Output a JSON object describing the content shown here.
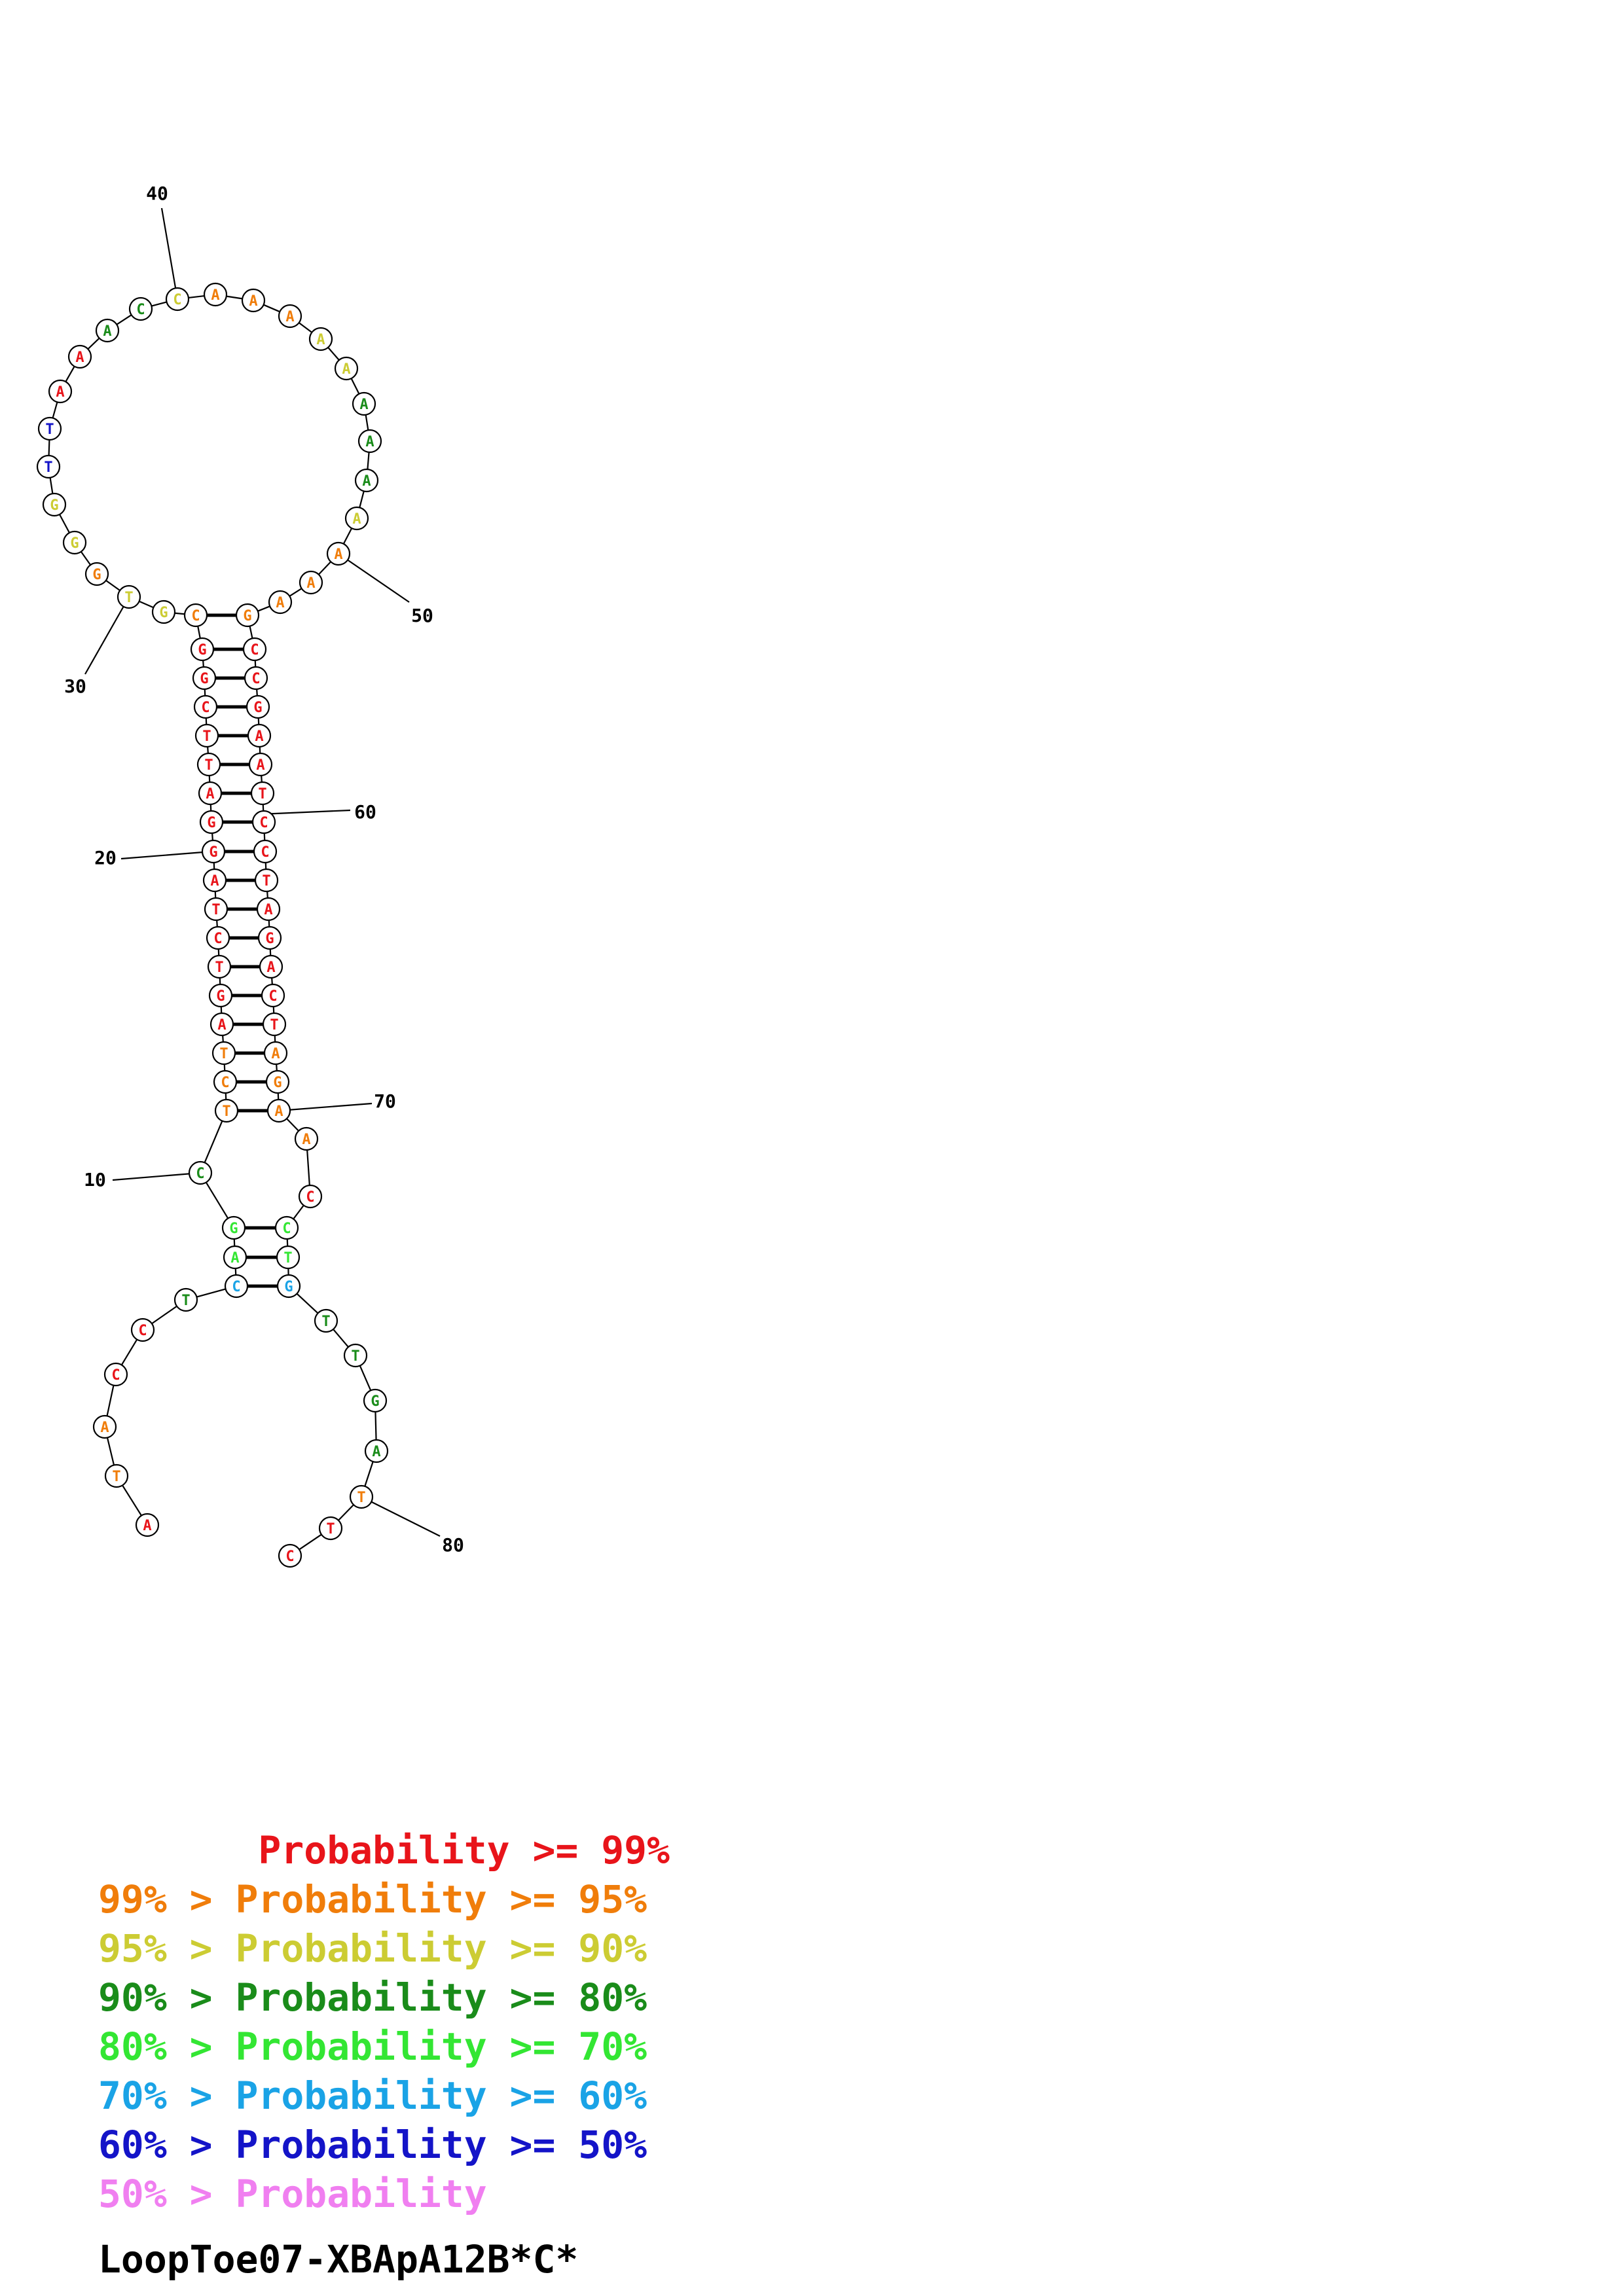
{
  "nucleotides": [
    {
      "n": 1,
      "base": "A",
      "color": "red"
    },
    {
      "n": 2,
      "base": "T",
      "color": "orange"
    },
    {
      "n": 3,
      "base": "A",
      "color": "orange"
    },
    {
      "n": 4,
      "base": "C",
      "color": "red"
    },
    {
      "n": 5,
      "base": "C",
      "color": "red"
    },
    {
      "n": 6,
      "base": "T",
      "color": "green"
    },
    {
      "n": 7,
      "base": "C",
      "color": "cyan"
    },
    {
      "n": 8,
      "base": "A",
      "color": "lime"
    },
    {
      "n": 9,
      "base": "G",
      "color": "lime"
    },
    {
      "n": 10,
      "base": "C",
      "color": "green"
    },
    {
      "n": 11,
      "base": "T",
      "color": "orange"
    },
    {
      "n": 12,
      "base": "C",
      "color": "orange"
    },
    {
      "n": 13,
      "base": "T",
      "color": "orange"
    },
    {
      "n": 14,
      "base": "A",
      "color": "red"
    },
    {
      "n": 15,
      "base": "G",
      "color": "red"
    },
    {
      "n": 16,
      "base": "T",
      "color": "red"
    },
    {
      "n": 17,
      "base": "C",
      "color": "red"
    },
    {
      "n": 18,
      "base": "T",
      "color": "red"
    },
    {
      "n": 19,
      "base": "A",
      "color": "red"
    },
    {
      "n": 20,
      "base": "G",
      "color": "red"
    },
    {
      "n": 21,
      "base": "G",
      "color": "red"
    },
    {
      "n": 22,
      "base": "A",
      "color": "red"
    },
    {
      "n": 23,
      "base": "T",
      "color": "red"
    },
    {
      "n": 24,
      "base": "T",
      "color": "red"
    },
    {
      "n": 25,
      "base": "C",
      "color": "red"
    },
    {
      "n": 26,
      "base": "G",
      "color": "red"
    },
    {
      "n": 27,
      "base": "G",
      "color": "red"
    },
    {
      "n": 28,
      "base": "C",
      "color": "orange"
    },
    {
      "n": 29,
      "base": "G",
      "color": "yellow"
    },
    {
      "n": 30,
      "base": "T",
      "color": "yellow"
    },
    {
      "n": 31,
      "base": "G",
      "color": "orange"
    },
    {
      "n": 32,
      "base": "G",
      "color": "yellow"
    },
    {
      "n": 33,
      "base": "G",
      "color": "yellow"
    },
    {
      "n": 34,
      "base": "T",
      "color": "blue"
    },
    {
      "n": 35,
      "base": "T",
      "color": "blue"
    },
    {
      "n": 36,
      "base": "A",
      "color": "red"
    },
    {
      "n": 37,
      "base": "A",
      "color": "red"
    },
    {
      "n": 38,
      "base": "A",
      "color": "green"
    },
    {
      "n": 39,
      "base": "C",
      "color": "green"
    },
    {
      "n": 40,
      "base": "C",
      "color": "yellow"
    },
    {
      "n": 41,
      "base": "A",
      "color": "orange"
    },
    {
      "n": 42,
      "base": "A",
      "color": "orange"
    },
    {
      "n": 43,
      "base": "A",
      "color": "orange"
    },
    {
      "n": 44,
      "base": "A",
      "color": "yellow"
    },
    {
      "n": 45,
      "base": "A",
      "color": "yellow"
    },
    {
      "n": 46,
      "base": "A",
      "color": "green"
    },
    {
      "n": 47,
      "base": "A",
      "color": "green"
    },
    {
      "n": 48,
      "base": "A",
      "color": "green"
    },
    {
      "n": 49,
      "base": "A",
      "color": "yellow"
    },
    {
      "n": 50,
      "base": "A",
      "color": "orange"
    },
    {
      "n": 51,
      "base": "A",
      "color": "orange"
    },
    {
      "n": 52,
      "base": "A",
      "color": "orange"
    },
    {
      "n": 53,
      "base": "G",
      "color": "orange"
    },
    {
      "n": 54,
      "base": "C",
      "color": "red"
    },
    {
      "n": 55,
      "base": "C",
      "color": "red"
    },
    {
      "n": 56,
      "base": "G",
      "color": "red"
    },
    {
      "n": 57,
      "base": "A",
      "color": "red"
    },
    {
      "n": 58,
      "base": "A",
      "color": "red"
    },
    {
      "n": 59,
      "base": "T",
      "color": "red"
    },
    {
      "n": 60,
      "base": "C",
      "color": "red"
    },
    {
      "n": 61,
      "base": "C",
      "color": "red"
    },
    {
      "n": 62,
      "base": "T",
      "color": "red"
    },
    {
      "n": 63,
      "base": "A",
      "color": "red"
    },
    {
      "n": 64,
      "base": "G",
      "color": "red"
    },
    {
      "n": 65,
      "base": "A",
      "color": "red"
    },
    {
      "n": 66,
      "base": "C",
      "color": "red"
    },
    {
      "n": 67,
      "base": "T",
      "color": "red"
    },
    {
      "n": 68,
      "base": "A",
      "color": "orange"
    },
    {
      "n": 69,
      "base": "G",
      "color": "orange"
    },
    {
      "n": 70,
      "base": "A",
      "color": "orange"
    },
    {
      "n": 71,
      "base": "A",
      "color": "orange"
    },
    {
      "n": 72,
      "base": "C",
      "color": "red"
    },
    {
      "n": 73,
      "base": "C",
      "color": "lime"
    },
    {
      "n": 74,
      "base": "T",
      "color": "lime"
    },
    {
      "n": 75,
      "base": "G",
      "color": "cyan"
    },
    {
      "n": 76,
      "base": "T",
      "color": "green"
    },
    {
      "n": 77,
      "base": "T",
      "color": "green"
    },
    {
      "n": 78,
      "base": "G",
      "color": "green"
    },
    {
      "n": 79,
      "base": "A",
      "color": "green"
    },
    {
      "n": 80,
      "base": "T",
      "color": "orange"
    },
    {
      "n": 81,
      "base": "T",
      "color": "red"
    },
    {
      "n": 82,
      "base": "C",
      "color": "red"
    }
  ],
  "pairs": [
    [
      7,
      75
    ],
    [
      8,
      74
    ],
    [
      9,
      73
    ],
    [
      11,
      70
    ],
    [
      12,
      69
    ],
    [
      13,
      68
    ],
    [
      14,
      67
    ],
    [
      15,
      66
    ],
    [
      16,
      65
    ],
    [
      17,
      64
    ],
    [
      18,
      63
    ],
    [
      19,
      62
    ],
    [
      20,
      61
    ],
    [
      21,
      60
    ],
    [
      22,
      59
    ],
    [
      23,
      58
    ],
    [
      24,
      57
    ],
    [
      25,
      56
    ],
    [
      26,
      55
    ],
    [
      27,
      54
    ],
    [
      28,
      53
    ]
  ],
  "tick_labels": [
    {
      "n": 10,
      "label": "10"
    },
    {
      "n": 20,
      "label": "20"
    },
    {
      "n": 30,
      "label": "30"
    },
    {
      "n": 40,
      "label": "40"
    },
    {
      "n": 50,
      "label": "50"
    },
    {
      "n": 60,
      "label": "60"
    },
    {
      "n": 70,
      "label": "70"
    },
    {
      "n": 80,
      "label": "80"
    }
  ],
  "colors": {
    "red": "#e8141a",
    "orange": "#f07d0a",
    "yellow": "#cccc33",
    "green": "#1a8c1a",
    "lime": "#33e633",
    "cyan": "#1aa3e6",
    "blue": "#1414c8",
    "pink": "#f07ff0"
  },
  "legend": [
    {
      "prefix": "       ",
      "text": "Probability >= 99%",
      "color": "red"
    },
    {
      "prefix": "",
      "text": "99% > Probability >= 95%",
      "color": "orange"
    },
    {
      "prefix": "",
      "text": "95% > Probability >= 90%",
      "color": "yellow"
    },
    {
      "prefix": "",
      "text": "90% > Probability >= 80%",
      "color": "green"
    },
    {
      "prefix": "",
      "text": "80% > Probability >= 70%",
      "color": "lime"
    },
    {
      "prefix": "",
      "text": "70% > Probability >= 60%",
      "color": "cyan"
    },
    {
      "prefix": "",
      "text": "60% > Probability >= 50%",
      "color": "blue"
    },
    {
      "prefix": "",
      "text": "50% > Probability",
      "color": "pink"
    }
  ],
  "structure_name": "LoopToe07-XBApA12B*C*"
}
